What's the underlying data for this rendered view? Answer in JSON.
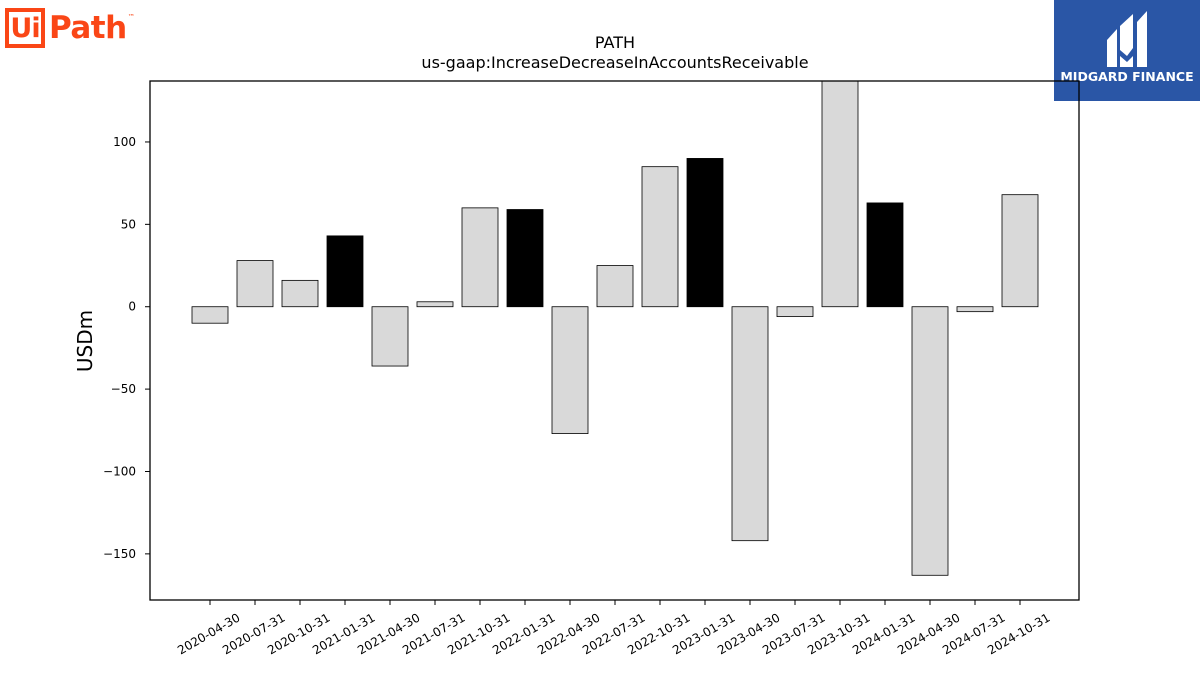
{
  "logos": {
    "left_box_text": "Ui",
    "left_word": "Path",
    "left_tm": "™",
    "right_text": "MIDGARD FINANCE"
  },
  "chart_data": {
    "type": "bar",
    "title": "PATH",
    "subtitle": "us-gaap:IncreaseDecreaseInAccountsReceivable",
    "xlabel": "",
    "ylabel": "USDm",
    "ylim": [
      -178,
      137
    ],
    "yticks": [
      -150,
      -100,
      -50,
      0,
      50,
      100
    ],
    "grid": false,
    "categories": [
      "2020-04-30",
      "2020-07-31",
      "2020-10-31",
      "2021-01-31",
      "2021-04-30",
      "2021-07-31",
      "2021-10-31",
      "2022-01-31",
      "2022-04-30",
      "2022-07-31",
      "2022-10-31",
      "2023-01-31",
      "2023-04-30",
      "2023-07-31",
      "2023-10-31",
      "2024-01-31",
      "2024-04-30",
      "2024-07-31",
      "2024-10-31"
    ],
    "values": [
      -10,
      28,
      16,
      43,
      -36,
      3,
      60,
      59,
      -77,
      25,
      85,
      90,
      -142,
      -6,
      139,
      63,
      -163,
      -3,
      68
    ],
    "highlight": [
      false,
      false,
      false,
      true,
      false,
      false,
      false,
      true,
      false,
      false,
      false,
      true,
      false,
      false,
      false,
      true,
      false,
      false,
      false
    ],
    "colors": {
      "default": "#d9d9d9",
      "highlight": "#000000",
      "edge": "#000000"
    }
  }
}
